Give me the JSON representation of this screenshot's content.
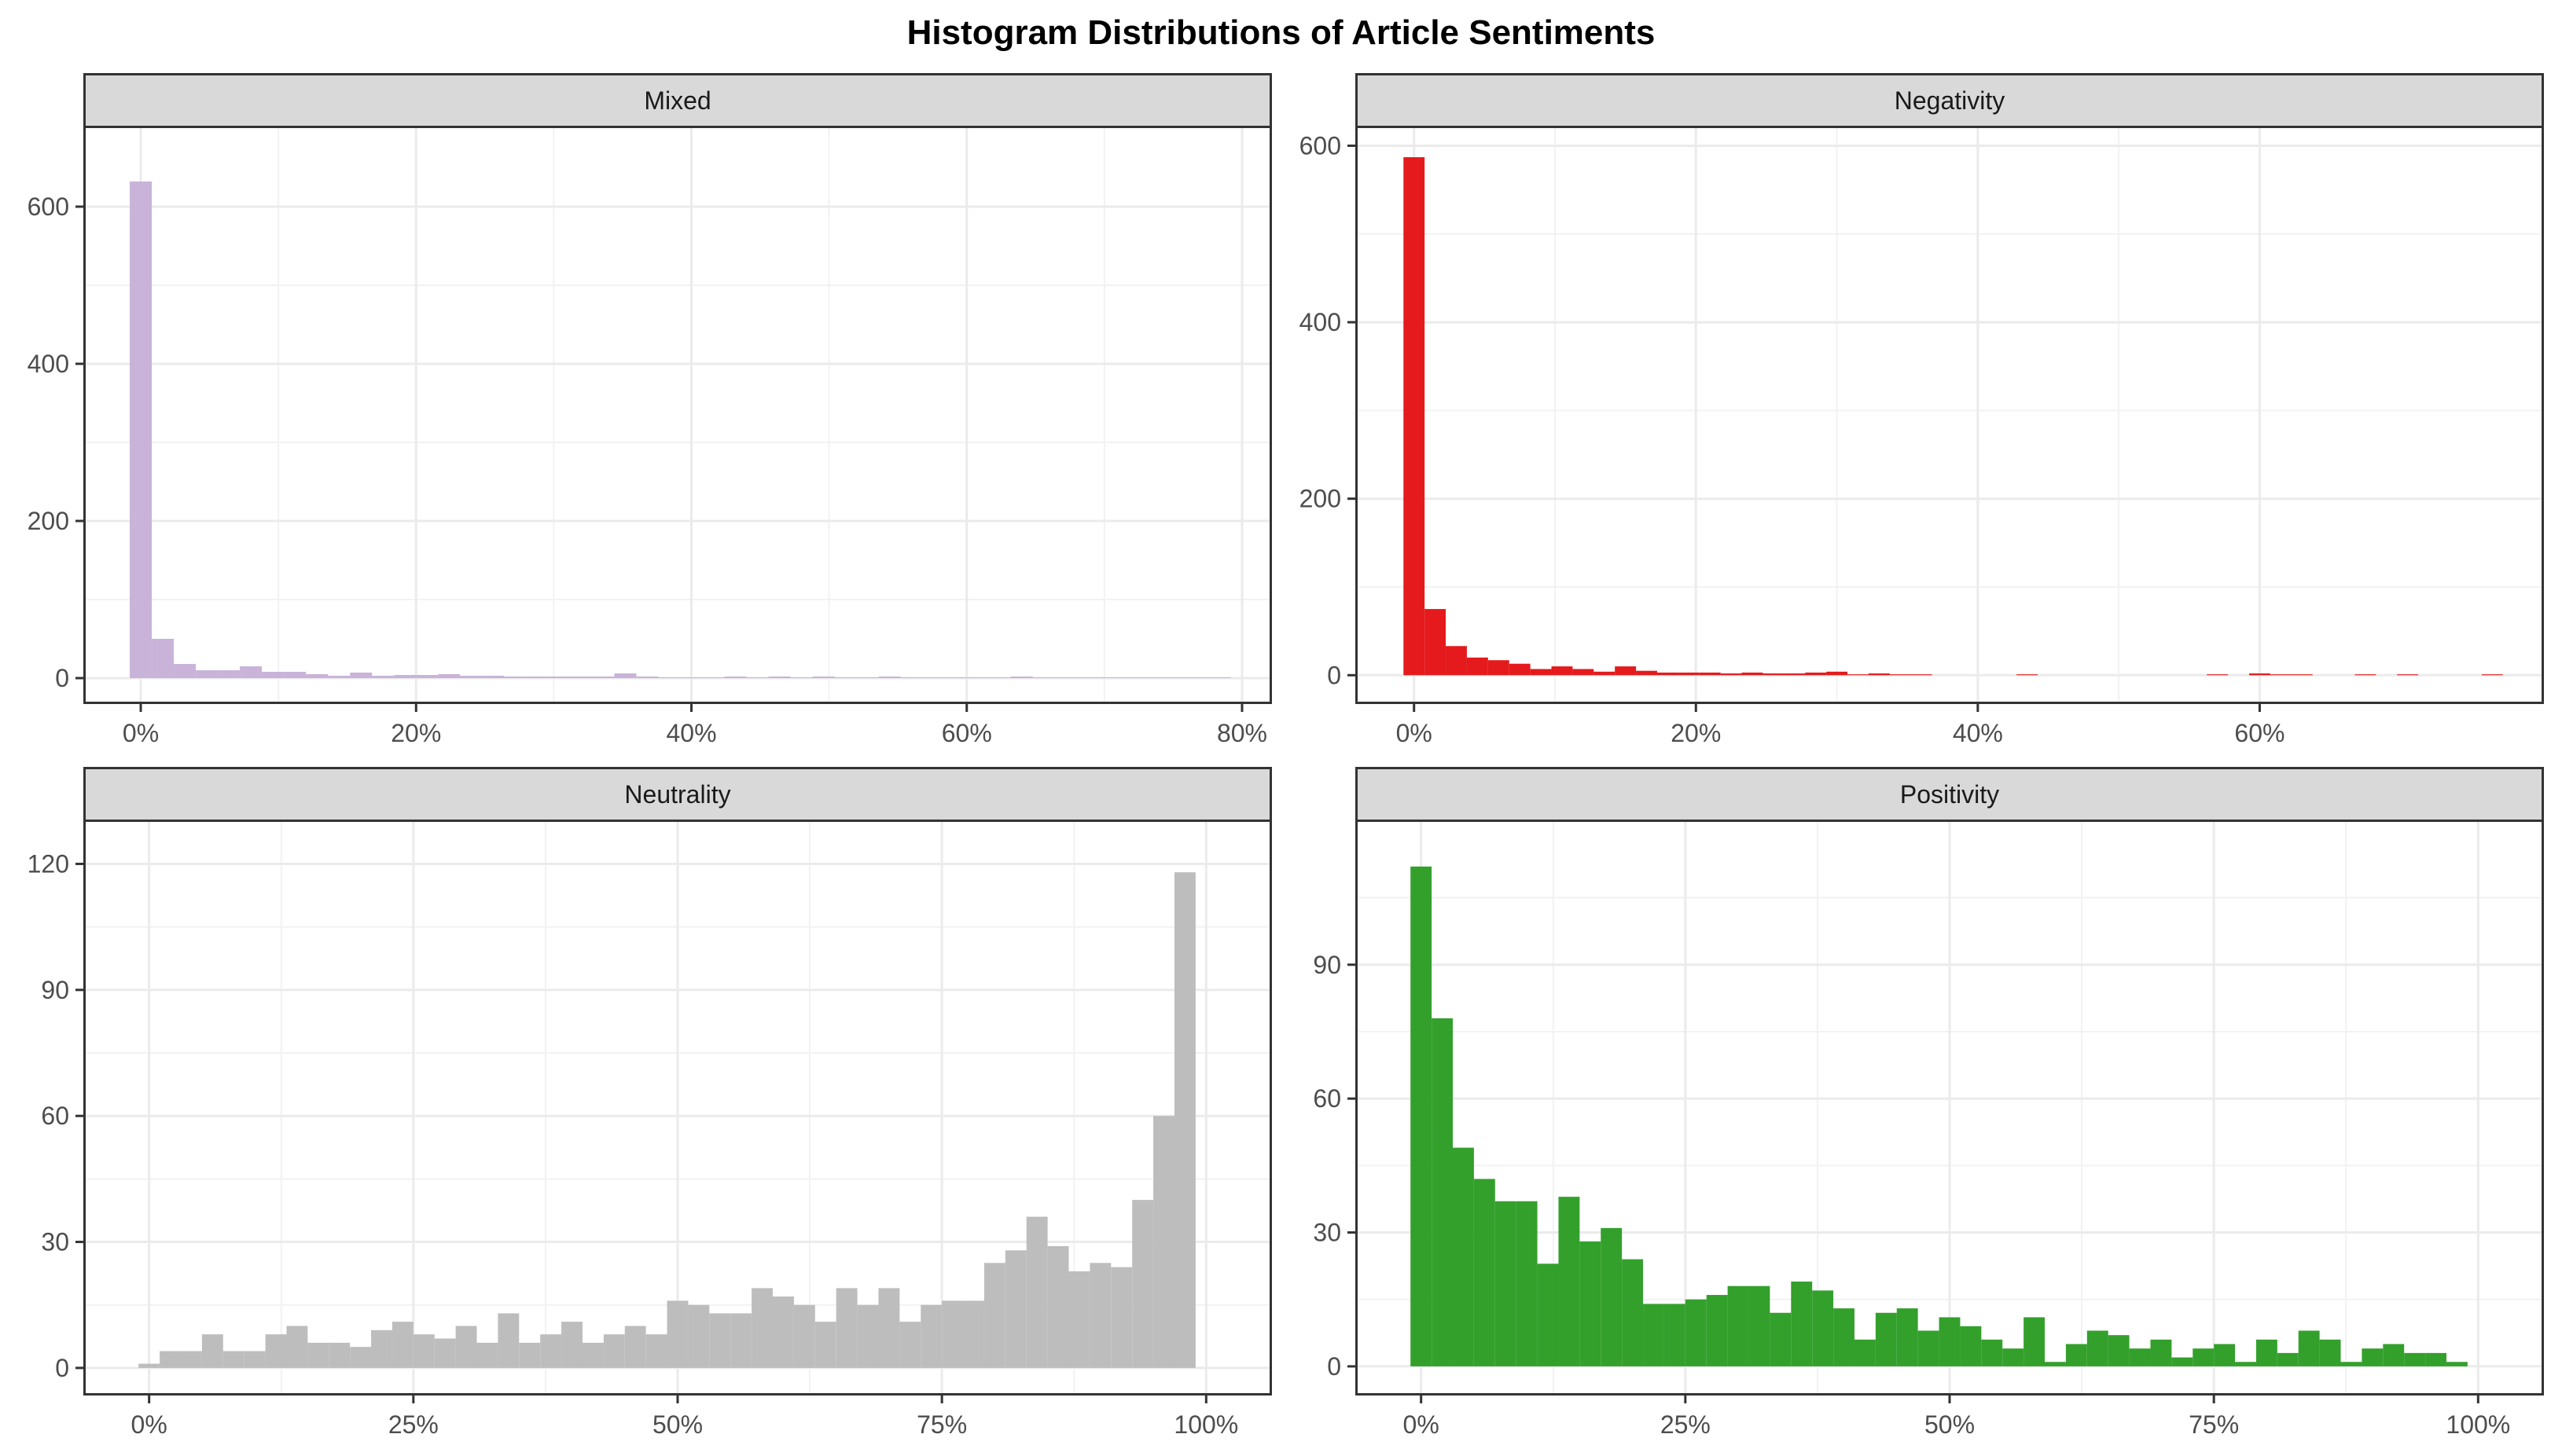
{
  "title": "Histogram Distributions of Article Sentiments",
  "chart_data": [
    {
      "type": "bar",
      "facet": "Mixed",
      "color": "#c9b3d9",
      "bin_width": 1.6,
      "xlim": [
        -4,
        82
      ],
      "ylim": [
        -30,
        700
      ],
      "x_ticks": [
        0,
        20,
        40,
        60,
        80
      ],
      "x_tick_labels": [
        "0%",
        "20%",
        "40%",
        "60%",
        "80%"
      ],
      "y_ticks": [
        0,
        200,
        400,
        600
      ],
      "y_tick_labels": [
        "0",
        "200",
        "400",
        "600"
      ],
      "bin_centers": [
        0.0,
        1.6,
        3.2,
        4.8,
        6.4,
        8.0,
        9.6,
        11.2,
        12.8,
        14.4,
        16.0,
        17.6,
        19.2,
        20.8,
        22.4,
        24.0,
        25.6,
        27.2,
        28.8,
        30.4,
        32.0,
        33.6,
        35.2,
        36.8,
        38.4,
        40.0,
        41.6,
        43.2,
        44.8,
        46.4,
        48.0,
        49.6,
        51.2,
        52.8,
        54.4,
        56.0,
        57.6,
        59.2,
        60.8,
        62.4,
        64.0,
        65.6,
        67.2,
        68.8,
        70.4,
        72.0,
        73.6,
        75.2,
        76.8,
        78.4
      ],
      "values": [
        632,
        50,
        18,
        10,
        10,
        15,
        8,
        8,
        5,
        3,
        7,
        3,
        4,
        4,
        5,
        3,
        3,
        2,
        2,
        2,
        2,
        2,
        6,
        2,
        1,
        1,
        1,
        2,
        1,
        2,
        1,
        2,
        1,
        1,
        2,
        1,
        1,
        1,
        1,
        1,
        2,
        1,
        1,
        1,
        1,
        1,
        1,
        1,
        1,
        1
      ]
    },
    {
      "type": "bar",
      "facet": "Negativity",
      "color": "#e41a1c",
      "bin_width": 1.5,
      "xlim": [
        -4,
        80
      ],
      "ylim": [
        -30,
        620
      ],
      "x_ticks": [
        0,
        20,
        40,
        60
      ],
      "x_tick_labels": [
        "0%",
        "20%",
        "40%",
        "60%"
      ],
      "y_ticks": [
        0,
        200,
        400,
        600
      ],
      "y_tick_labels": [
        "0",
        "200",
        "400",
        "600"
      ],
      "bin_centers": [
        0.0,
        1.5,
        3.0,
        4.5,
        6.0,
        7.5,
        9.0,
        10.5,
        12.0,
        13.5,
        15.0,
        16.5,
        18.0,
        19.5,
        21.0,
        22.5,
        24.0,
        25.5,
        27.0,
        28.5,
        30.0,
        31.5,
        33.0,
        34.5,
        36.0,
        43.5,
        57.0,
        60.0,
        61.5,
        63.0,
        67.5,
        70.5,
        76.5
      ],
      "values": [
        587,
        75,
        33,
        20,
        17,
        13,
        7,
        10,
        7,
        4,
        10,
        5,
        3,
        3,
        3,
        2,
        3,
        2,
        2,
        3,
        4,
        1,
        2,
        1,
        1,
        1,
        1,
        2,
        1,
        1,
        1,
        1,
        1
      ]
    },
    {
      "type": "bar",
      "facet": "Neutrality",
      "color": "#bdbdbd",
      "bin_width": 2.0,
      "xlim": [
        -6,
        106
      ],
      "ylim": [
        -6,
        130
      ],
      "x_ticks": [
        0,
        25,
        50,
        75,
        100
      ],
      "x_tick_labels": [
        "0%",
        "25%",
        "50%",
        "75%",
        "100%"
      ],
      "y_ticks": [
        0,
        30,
        60,
        90,
        120
      ],
      "y_tick_labels": [
        "0",
        "30",
        "60",
        "90",
        "120"
      ],
      "bin_centers": [
        0,
        2,
        4,
        6,
        8,
        10,
        12,
        14,
        16,
        18,
        20,
        22,
        24,
        26,
        28,
        30,
        32,
        34,
        36,
        38,
        40,
        42,
        44,
        46,
        48,
        50,
        52,
        54,
        56,
        58,
        60,
        62,
        64,
        66,
        68,
        70,
        72,
        74,
        76,
        78,
        80,
        82,
        84,
        86,
        88,
        90,
        92,
        94,
        96,
        98,
        100
      ],
      "values": [
        1,
        4,
        4,
        8,
        4,
        4,
        8,
        10,
        6,
        6,
        5,
        9,
        11,
        8,
        7,
        10,
        6,
        13,
        6,
        8,
        11,
        6,
        8,
        10,
        8,
        16,
        15,
        13,
        13,
        19,
        17,
        15,
        11,
        19,
        15,
        19,
        11,
        15,
        16,
        16,
        25,
        28,
        36,
        29,
        23,
        25,
        24,
        40,
        60,
        118,
        0
      ]
    },
    {
      "type": "bar",
      "facet": "Positivity",
      "color": "#33a02c",
      "bin_width": 2.0,
      "xlim": [
        -6,
        106
      ],
      "ylim": [
        -6,
        122
      ],
      "x_ticks": [
        0,
        25,
        50,
        75,
        100
      ],
      "x_tick_labels": [
        "0%",
        "25%",
        "50%",
        "75%",
        "100%"
      ],
      "y_ticks": [
        0,
        30,
        60,
        90
      ],
      "y_tick_labels": [
        "0",
        "30",
        "60",
        "90"
      ],
      "bin_centers": [
        0,
        2,
        4,
        6,
        8,
        10,
        12,
        14,
        16,
        18,
        20,
        22,
        24,
        26,
        28,
        30,
        32,
        34,
        36,
        38,
        40,
        42,
        44,
        46,
        48,
        50,
        52,
        54,
        56,
        58,
        60,
        62,
        64,
        66,
        68,
        70,
        72,
        74,
        76,
        78,
        80,
        82,
        84,
        86,
        88,
        90,
        92,
        94,
        96,
        98,
        100
      ],
      "values": [
        112,
        78,
        49,
        42,
        37,
        37,
        23,
        38,
        28,
        31,
        24,
        14,
        14,
        15,
        16,
        18,
        18,
        12,
        19,
        17,
        13,
        6,
        12,
        13,
        8,
        11,
        9,
        6,
        4,
        11,
        1,
        5,
        8,
        7,
        4,
        6,
        2,
        4,
        5,
        1,
        6,
        3,
        8,
        6,
        1,
        4,
        5,
        3,
        3,
        1,
        0
      ]
    }
  ]
}
